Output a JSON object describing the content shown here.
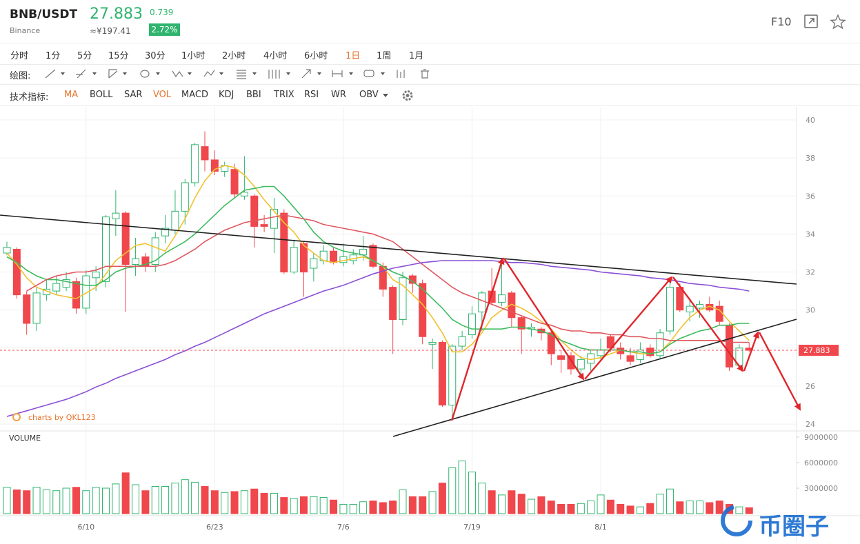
{
  "header": {
    "pair": "BNB/USDT",
    "exchange": "Binance",
    "change": "0.739",
    "price_cny": "≈¥197.41",
    "change_percent": "2.72%",
    "f10": "F10"
  },
  "toolbar": {
    "periods": [
      "分时",
      "1分",
      "5分",
      "15分",
      "30分",
      "1小时",
      "2小时",
      "4小时",
      "6小时",
      "1日",
      "1周",
      "1月"
    ],
    "active_period": 9,
    "drawing_label": "绘图:",
    "indicator_label": "技术指标:",
    "indicators": [
      "MA",
      "BOLL",
      "SAR",
      "VOL",
      "MACD",
      "KDJ",
      "BBI",
      "TRIX",
      "RSI",
      "WR",
      "OBV"
    ],
    "active_indicators": [
      0,
      3
    ]
  },
  "chart_data": {
    "type": "candlestick",
    "categories": [
      null,
      null,
      null,
      null,
      null,
      null,
      null,
      null,
      "6/10",
      null,
      null,
      null,
      null,
      null,
      null,
      null,
      null,
      null,
      null,
      null,
      null,
      "6/23",
      null,
      null,
      null,
      null,
      null,
      null,
      null,
      null,
      null,
      null,
      null,
      null,
      "7/6",
      null,
      null,
      null,
      null,
      null,
      null,
      null,
      null,
      null,
      null,
      null,
      null,
      "7/19",
      null,
      null,
      null,
      null,
      null,
      null,
      null,
      null,
      null,
      null,
      null,
      null,
      "8/1",
      null,
      null,
      null,
      null,
      null,
      null,
      null,
      null,
      null,
      null,
      null,
      null,
      null,
      null,
      null
    ],
    "open": [
      33.0,
      33.2,
      30.8,
      29.3,
      30.8,
      31.0,
      31.2,
      31.5,
      30.1,
      31.7,
      31.5,
      34.8,
      35.1,
      32.4,
      32.8,
      32.4,
      33.9,
      34.2,
      35.2,
      36.7,
      38.6,
      37.9,
      37.3,
      37.4,
      36.0,
      36.0,
      34.5,
      34.3,
      35.1,
      32.0,
      33.5,
      32.2,
      32.6,
      33.1,
      32.5,
      32.6,
      32.9,
      33.4,
      32.3,
      31.2,
      29.5,
      31.8,
      31.4,
      28.2,
      28.3,
      25.0,
      28.1,
      28.7,
      29.9,
      31.0,
      30.4,
      30.9,
      29.6,
      29.0,
      29.0,
      28.8,
      27.6,
      27.6,
      26.9,
      27.2,
      27.6,
      28.6,
      28.0,
      27.6,
      27.4,
      28.0,
      27.6,
      28.9,
      31.2,
      29.9,
      30.1,
      30.3,
      30.2,
      29.2,
      27.1,
      28.0
    ],
    "high": [
      33.6,
      33.3,
      31.0,
      31.2,
      31.6,
      31.8,
      32.0,
      31.7,
      32.1,
      32.3,
      35.0,
      36.3,
      35.2,
      33.8,
      33.0,
      34.1,
      35.0,
      36.3,
      36.9,
      38.8,
      39.4,
      38.4,
      37.8,
      37.7,
      38.1,
      36.1,
      35.0,
      35.9,
      35.3,
      33.7,
      33.6,
      33.0,
      33.4,
      33.3,
      33.5,
      33.2,
      33.9,
      33.5,
      32.5,
      31.3,
      32.0,
      31.9,
      31.6,
      28.5,
      28.4,
      28.2,
      28.9,
      30.2,
      31.0,
      32.2,
      32.4,
      31.0,
      29.7,
      29.3,
      29.1,
      29.0,
      27.9,
      27.8,
      27.6,
      27.9,
      28.5,
      28.7,
      28.3,
      28.0,
      28.3,
      28.2,
      29.0,
      31.5,
      31.4,
      30.6,
      30.5,
      30.7,
      30.5,
      29.3,
      28.2,
      28.3
    ],
    "low": [
      32.9,
      30.6,
      28.7,
      28.9,
      30.5,
      30.8,
      31.0,
      29.8,
      29.8,
      31.0,
      31.2,
      33.9,
      29.9,
      31.8,
      32.0,
      32.0,
      33.5,
      34.0,
      34.5,
      36.5,
      37.3,
      37.1,
      37.0,
      35.9,
      35.8,
      33.3,
      34.1,
      33.0,
      31.9,
      31.9,
      30.7,
      31.5,
      32.4,
      32.4,
      32.3,
      32.4,
      32.6,
      32.2,
      30.7,
      27.7,
      29.2,
      30.9,
      28.2,
      26.9,
      24.9,
      24.3,
      27.9,
      28.5,
      28.9,
      30.3,
      30.2,
      29.1,
      27.7,
      28.6,
      28.4,
      27.1,
      26.7,
      26.6,
      26.5,
      26.8,
      27.4,
      27.8,
      27.4,
      27.1,
      27.2,
      27.5,
      27.4,
      28.7,
      29.9,
      29.4,
      29.6,
      29.9,
      29.2,
      26.8,
      26.9,
      27.8
    ],
    "close": [
      33.3,
      30.8,
      29.3,
      30.9,
      31.1,
      31.4,
      31.6,
      30.1,
      31.8,
      32.0,
      34.9,
      35.1,
      32.4,
      32.7,
      32.3,
      33.8,
      34.3,
      35.2,
      36.7,
      38.7,
      37.9,
      37.3,
      37.6,
      36.1,
      36.2,
      34.4,
      34.4,
      35.3,
      32.0,
      33.3,
      32.0,
      32.7,
      33.1,
      32.5,
      32.8,
      32.9,
      33.2,
      32.3,
      31.1,
      29.5,
      31.7,
      31.4,
      28.6,
      28.3,
      25.0,
      28.1,
      28.6,
      29.8,
      30.9,
      30.4,
      30.8,
      29.6,
      29.0,
      29.1,
      28.8,
      27.7,
      27.4,
      26.9,
      27.4,
      27.7,
      27.9,
      28.0,
      27.7,
      27.3,
      27.9,
      27.6,
      28.8,
      31.2,
      30.0,
      30.2,
      30.3,
      30.0,
      29.4,
      27.0,
      28.0,
      27.883
    ],
    "up_color": "#2fb46e",
    "down_color": "#f0474c",
    "series": [
      {
        "color": "#f2c12e",
        "values": [
          33.0,
          32.4,
          31.7,
          31.2,
          31.0,
          30.8,
          30.7,
          30.6,
          30.9,
          31.2,
          31.9,
          32.6,
          33.0,
          33.4,
          33.5,
          33.3,
          33.1,
          33.9,
          34.8,
          35.9,
          36.8,
          37.4,
          37.6,
          37.5,
          37.1,
          36.5,
          35.8,
          35.2,
          34.6,
          34.1,
          33.4,
          33.0,
          32.6,
          32.5,
          32.6,
          32.7,
          32.8,
          32.6,
          32.3,
          31.6,
          31.3,
          30.8,
          30.3,
          29.6,
          28.8,
          27.8,
          27.8,
          28.2,
          28.8,
          29.6,
          30.0,
          30.3,
          30.1,
          29.8,
          29.4,
          29.0,
          28.4,
          27.9,
          27.5,
          27.4,
          27.5,
          27.7,
          27.9,
          27.8,
          27.7,
          27.7,
          27.8,
          28.3,
          29.0,
          29.6,
          30.0,
          30.2,
          30.0,
          29.4,
          28.9,
          28.4
        ]
      },
      {
        "color": "#3dbb5e",
        "values": [
          32.8,
          32.5,
          32.1,
          31.8,
          31.6,
          31.6,
          31.5,
          31.4,
          31.3,
          31.3,
          31.6,
          32.0,
          32.2,
          32.3,
          32.4,
          32.6,
          33.0,
          33.3,
          33.6,
          34.0,
          34.5,
          35.0,
          35.5,
          35.9,
          36.3,
          36.4,
          36.5,
          36.5,
          36.0,
          35.4,
          34.8,
          34.1,
          33.6,
          33.3,
          33.1,
          33.0,
          32.9,
          32.6,
          32.3,
          32.0,
          31.8,
          31.5,
          31.1,
          30.6,
          30.1,
          29.5,
          29.2,
          29.0,
          29.0,
          29.0,
          29.0,
          29.1,
          29.1,
          29.0,
          28.9,
          28.7,
          28.4,
          28.2,
          28.0,
          27.9,
          27.9,
          27.9,
          27.9,
          27.8,
          27.8,
          27.7,
          27.8,
          28.2,
          28.5,
          28.7,
          28.9,
          29.0,
          29.2,
          29.2,
          29.3,
          29.3
        ]
      },
      {
        "color": "#e0575e",
        "values": [
          null,
          null,
          31.0,
          31.3,
          31.6,
          31.8,
          31.9,
          32.0,
          32.0,
          32.1,
          32.3,
          32.3,
          32.3,
          32.3,
          32.3,
          32.3,
          32.4,
          32.6,
          32.9,
          33.2,
          33.6,
          33.9,
          34.2,
          34.4,
          34.6,
          34.7,
          34.8,
          34.9,
          35.0,
          34.9,
          34.8,
          34.7,
          34.5,
          34.4,
          34.3,
          34.2,
          34.1,
          34.0,
          33.8,
          33.6,
          33.2,
          32.8,
          32.4,
          32.0,
          31.6,
          31.2,
          30.9,
          30.7,
          30.5,
          30.3,
          30.1,
          29.9,
          29.7,
          29.5,
          29.3,
          29.2,
          29.0,
          28.9,
          28.9,
          28.8,
          28.8,
          28.7,
          28.7,
          28.6,
          28.6,
          28.5,
          28.5,
          28.4,
          28.4,
          28.4,
          28.4,
          28.4,
          28.4,
          28.3,
          28.3,
          28.3
        ]
      },
      {
        "color": "#8a4fd6",
        "values": [
          24.4,
          24.55,
          24.7,
          24.85,
          25.0,
          25.15,
          25.3,
          25.5,
          25.7,
          25.95,
          26.15,
          26.4,
          26.6,
          26.8,
          27.0,
          27.2,
          27.4,
          27.65,
          27.85,
          28.1,
          28.3,
          28.55,
          28.8,
          29.05,
          29.3,
          29.55,
          29.8,
          30.0,
          30.2,
          30.4,
          30.6,
          30.8,
          31.0,
          31.15,
          31.3,
          31.5,
          31.7,
          31.9,
          32.05,
          32.2,
          32.3,
          32.4,
          32.5,
          32.55,
          32.6,
          32.6,
          32.6,
          32.6,
          32.6,
          32.6,
          32.55,
          32.5,
          32.5,
          32.45,
          32.4,
          32.3,
          32.25,
          32.2,
          32.15,
          32.1,
          32.0,
          31.95,
          31.9,
          31.85,
          31.8,
          31.7,
          31.65,
          31.6,
          31.5,
          31.4,
          31.35,
          31.3,
          31.2,
          31.15,
          31.1,
          31.0
        ]
      }
    ],
    "ylim": [
      23.64,
      40.69
    ],
    "yticks": [
      24,
      26,
      28,
      30,
      32,
      34,
      36,
      38,
      40
    ],
    "grid": true,
    "last_price": 27.883,
    "volume_label": "VOLUME",
    "volume": [
      3100000,
      2800000,
      2700000,
      3100000,
      2800000,
      2700000,
      3000000,
      3100000,
      2700000,
      3100000,
      3000000,
      3500000,
      4800000,
      3400000,
      2700000,
      3200000,
      3200000,
      3600000,
      4000000,
      3700000,
      3200000,
      2700000,
      2500000,
      2600000,
      2700000,
      2900000,
      2400000,
      2400000,
      1900000,
      1800000,
      2000000,
      2000000,
      1900000,
      1600000,
      1100000,
      1100000,
      1400000,
      1500000,
      1300000,
      1500000,
      2800000,
      2000000,
      2000000,
      2600000,
      3600000,
      5400000,
      6200000,
      4900000,
      3600000,
      2700000,
      2200000,
      2700000,
      2300000,
      1700000,
      2000000,
      1500000,
      1100000,
      1100000,
      1200000,
      1500000,
      2200000,
      1600000,
      1100000,
      900000,
      800000,
      1200000,
      2300000,
      2900000,
      1400000,
      1500000,
      1500000,
      1300000,
      1500000,
      1100000,
      800000,
      700000
    ],
    "volume_ylim": [
      0,
      9650000
    ],
    "volume_yticks": [
      3000000,
      6000000,
      9000000
    ],
    "credit": "charts by QKL123",
    "watermark": "币圈子"
  }
}
